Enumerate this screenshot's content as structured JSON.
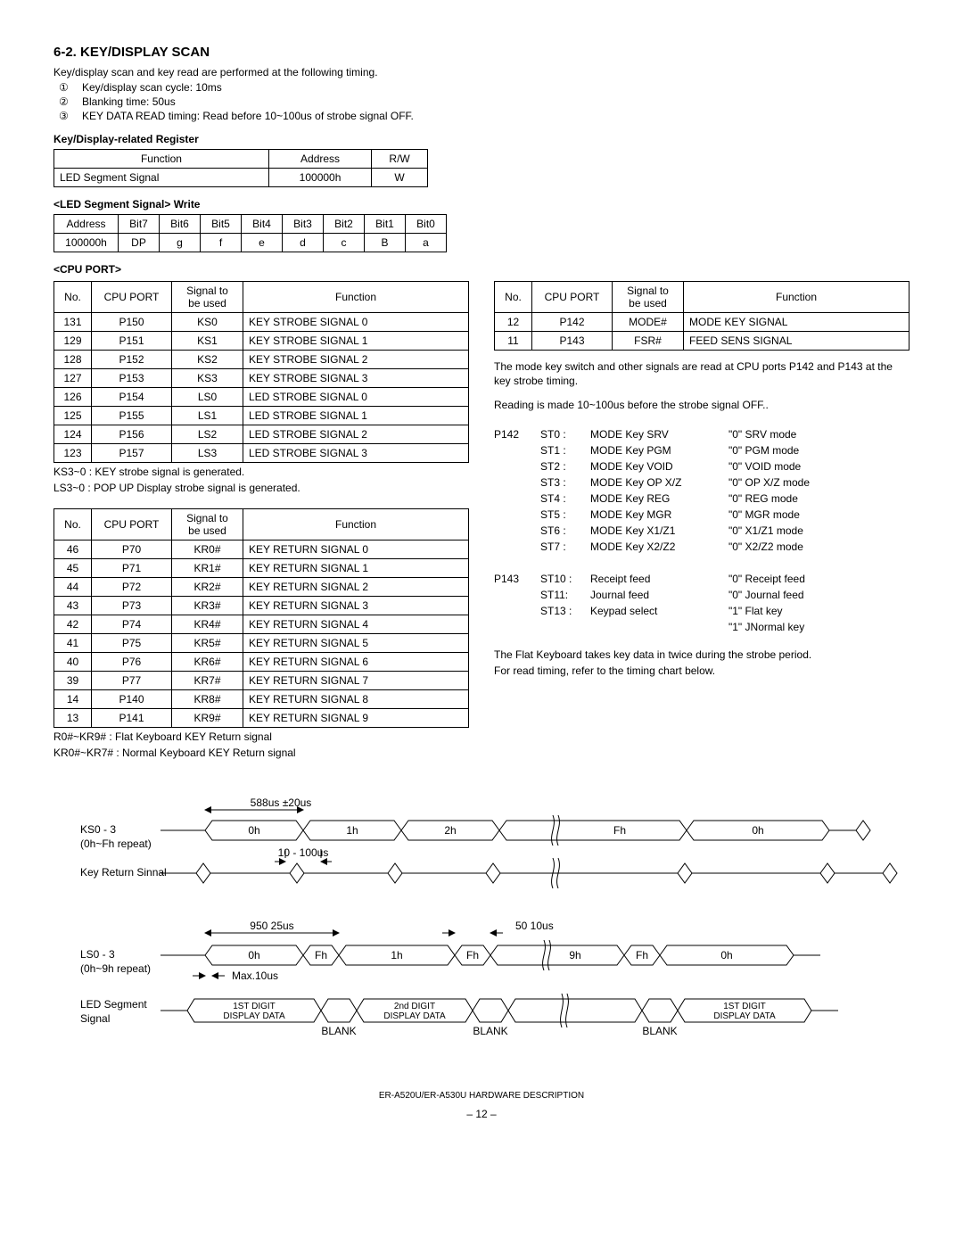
{
  "heading": "6-2. KEY/DISPLAY SCAN",
  "intro": "Key/display scan and key read are performed at the following timing.",
  "numbered": [
    {
      "n": "①",
      "t": "Key/display scan cycle: 10ms"
    },
    {
      "n": "②",
      "t": "Blanking time: 50us"
    },
    {
      "n": "③",
      "t": "KEY DATA READ timing: Read before 10~100us of strobe signal OFF."
    }
  ],
  "reg_title": "Key/Display-related Register",
  "reg_table": {
    "headers": [
      "Function",
      "Address",
      "R/W"
    ],
    "rows": [
      [
        "LED Segment Signal",
        "100000h",
        "W"
      ]
    ]
  },
  "led_title": "<LED Segment Signal> Write",
  "led_table": {
    "headers": [
      "Address",
      "Bit7",
      "Bit6",
      "Bit5",
      "Bit4",
      "Bit3",
      "Bit2",
      "Bit1",
      "Bit0"
    ],
    "rows": [
      [
        "100000h",
        "DP",
        "g",
        "f",
        "e",
        "d",
        "c",
        "B",
        "a"
      ]
    ]
  },
  "cpu_title": "<CPU PORT>",
  "cpu_headers": [
    "No.",
    "CPU PORT",
    "Signal to be used",
    "Function"
  ],
  "cpu1": [
    [
      "131",
      "P150",
      "KS0",
      "KEY STROBE SIGNAL 0"
    ],
    [
      "129",
      "P151",
      "KS1",
      "KEY STROBE SIGNAL 1"
    ],
    [
      "128",
      "P152",
      "KS2",
      "KEY STROBE SIGNAL 2"
    ],
    [
      "127",
      "P153",
      "KS3",
      "KEY STROBE SIGNAL 3"
    ],
    [
      "126",
      "P154",
      "LS0",
      "LED STROBE SIGNAL 0"
    ],
    [
      "125",
      "P155",
      "LS1",
      "LED STROBE SIGNAL 1"
    ],
    [
      "124",
      "P156",
      "LS2",
      "LED STROBE SIGNAL 2"
    ],
    [
      "123",
      "P157",
      "LS3",
      "LED STROBE SIGNAL 3"
    ]
  ],
  "cpu1_notes": [
    "KS3~0 : KEY strobe signal is generated.",
    "LS3~0 : POP UP Display strobe signal is generated."
  ],
  "cpu2": [
    [
      "46",
      "P70",
      "KR0#",
      "KEY RETURN SIGNAL 0"
    ],
    [
      "45",
      "P71",
      "KR1#",
      "KEY RETURN SIGNAL 1"
    ],
    [
      "44",
      "P72",
      "KR2#",
      "KEY RETURN SIGNAL 2"
    ],
    [
      "43",
      "P73",
      "KR3#",
      "KEY RETURN SIGNAL 3"
    ],
    [
      "42",
      "P74",
      "KR4#",
      "KEY RETURN SIGNAL 4"
    ],
    [
      "41",
      "P75",
      "KR5#",
      "KEY RETURN SIGNAL 5"
    ],
    [
      "40",
      "P76",
      "KR6#",
      "KEY RETURN SIGNAL 6"
    ],
    [
      "39",
      "P77",
      "KR7#",
      "KEY RETURN SIGNAL 7"
    ],
    [
      "14",
      "P140",
      "KR8#",
      "KEY RETURN SIGNAL 8"
    ],
    [
      "13",
      "P141",
      "KR9#",
      "KEY RETURN SIGNAL 9"
    ]
  ],
  "cpu2_notes": [
    "R0#~KR9# : Flat Keyboard KEY Return signal",
    "KR0#~KR7# : Normal Keyboard KEY Return signal"
  ],
  "cpu3": [
    [
      "12",
      "P142",
      "MODE#",
      "MODE KEY SIGNAL"
    ],
    [
      "11",
      "P143",
      "FSR#",
      "FEED SENS SIGNAL"
    ]
  ],
  "right_notes": [
    "The mode key switch and other signals are read at CPU ports P142 and P143 at the key strobe timing.",
    "Reading is made 10~100us before the strobe signal OFF.."
  ],
  "p142": [
    {
      "st": "ST0 :",
      "name": "MODE Key SRV",
      "val": "\"0\" SRV mode"
    },
    {
      "st": "ST1 :",
      "name": "MODE Key PGM",
      "val": "\"0\" PGM mode"
    },
    {
      "st": "ST2 :",
      "name": "MODE Key VOID",
      "val": "\"0\" VOID mode"
    },
    {
      "st": "ST3 :",
      "name": "MODE Key OP X/Z",
      "val": "\"0\" OP X/Z mode"
    },
    {
      "st": "ST4 :",
      "name": "MODE Key REG",
      "val": "\"0\" REG mode"
    },
    {
      "st": "ST5 :",
      "name": "MODE Key MGR",
      "val": "\"0\" MGR mode"
    },
    {
      "st": "ST6 :",
      "name": "MODE Key X1/Z1",
      "val": "\"0\" X1/Z1 mode"
    },
    {
      "st": "ST7 :",
      "name": "MODE Key X2/Z2",
      "val": "\"0\" X2/Z2 mode"
    }
  ],
  "p143": [
    {
      "st": "ST10 :",
      "name": "Receipt feed",
      "val": "\"0\" Receipt feed"
    },
    {
      "st": "ST11:",
      "name": "Journal feed",
      "val": "\"0\" Journal feed"
    },
    {
      "st": "ST13 :",
      "name": "Keypad select",
      "val": "\"1\" Flat key"
    },
    {
      "st": "",
      "name": "",
      "val": "\"1\" JNormal key"
    }
  ],
  "right_bottom": [
    "The Flat Keyboard takes key data in twice during the strobe period.",
    "For read timing, refer to the timing chart below."
  ],
  "timing": {
    "labels": {
      "ks": "KS0 - 3",
      "ks_sub": "(0h~Fh repeat)",
      "kr": "Key Return Sinnal",
      "ls": "LS0 - 3",
      "ls_sub": "(0h~9h repeat)",
      "seg": "LED Segment",
      "seg_sub": "Signal",
      "t588": "588us ±20us",
      "t10_100": "10 - 100us",
      "t950": "950   25us",
      "t50": "50   10us",
      "max10": "Max.10us",
      "blank": "BLANK",
      "d1": "1ST DIGIT\nDISPLAY DATA",
      "d2": "2nd DIGIT\nDISPLAY DATA",
      "ks_vals": [
        "0h",
        "1h",
        "2h",
        "Fh",
        "0h"
      ],
      "ls_vals": [
        "0h",
        "Fh",
        "1h",
        "Fh",
        "9h",
        "Fh",
        "0h"
      ]
    }
  },
  "footer": "ER-A520U/ER-A530U    HARDWARE DESCRIPTION",
  "page": "– 12 –"
}
